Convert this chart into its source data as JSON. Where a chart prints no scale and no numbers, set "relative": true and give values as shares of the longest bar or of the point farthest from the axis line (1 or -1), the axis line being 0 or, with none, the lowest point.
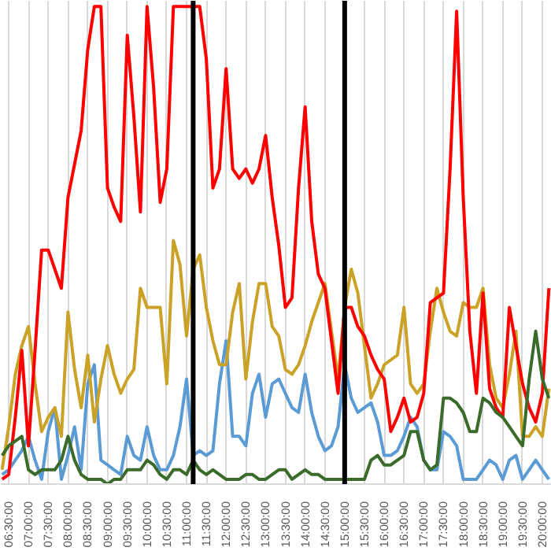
{
  "chart_data": {
    "type": "line",
    "relative": true,
    "x": [
      6.333,
      6.5,
      6.667,
      6.833,
      7,
      7.167,
      7.333,
      7.5,
      7.667,
      7.833,
      8,
      8.167,
      8.333,
      8.5,
      8.667,
      8.833,
      9,
      9.167,
      9.333,
      9.5,
      9.667,
      9.833,
      10,
      10.167,
      10.333,
      10.5,
      10.667,
      10.833,
      11,
      11.167,
      11.333,
      11.5,
      11.667,
      11.833,
      12,
      12.167,
      12.333,
      12.5,
      12.667,
      12.833,
      13,
      13.167,
      13.333,
      13.5,
      13.667,
      13.833,
      14,
      14.167,
      14.333,
      14.5,
      14.667,
      14.833,
      15,
      15.167,
      15.333,
      15.5,
      15.667,
      15.833,
      16,
      16.167,
      16.333,
      16.5,
      16.667,
      16.833,
      17,
      17.167,
      17.333,
      17.5,
      17.667,
      17.833,
      18,
      18.167,
      18.333,
      18.5,
      18.667,
      18.833,
      19,
      19.167,
      19.333,
      19.5,
      19.667,
      19.833,
      20,
      20.167
    ],
    "xlim": [
      6.3,
      20.24
    ],
    "xticks": [
      {
        "value": 6.5,
        "label": "06:30:00"
      },
      {
        "value": 7,
        "label": "07:00:00"
      },
      {
        "value": 7.5,
        "label": "07:30:00"
      },
      {
        "value": 8,
        "label": "08:00:00"
      },
      {
        "value": 8.5,
        "label": "08:30:00"
      },
      {
        "value": 9,
        "label": "09:00:00"
      },
      {
        "value": 9.5,
        "label": "09:30:00"
      },
      {
        "value": 10,
        "label": "10:00:00"
      },
      {
        "value": 10.5,
        "label": "10:30:00"
      },
      {
        "value": 11,
        "label": "11:00:00"
      },
      {
        "value": 11.5,
        "label": "11:30:00"
      },
      {
        "value": 12,
        "label": "12:00:00"
      },
      {
        "value": 12.5,
        "label": "12:30:00"
      },
      {
        "value": 13,
        "label": "13:00:00"
      },
      {
        "value": 13.5,
        "label": "13:30:00"
      },
      {
        "value": 14,
        "label": "14:00:00"
      },
      {
        "value": 14.5,
        "label": "14:30:00"
      },
      {
        "value": 15,
        "label": "15:00:00"
      },
      {
        "value": 15.5,
        "label": "15:30:00"
      },
      {
        "value": 16,
        "label": "16:00:00"
      },
      {
        "value": 16.5,
        "label": "16:30:00"
      },
      {
        "value": 17,
        "label": "17:00:00"
      },
      {
        "value": 17.5,
        "label": "17:30:00"
      },
      {
        "value": 18,
        "label": "18:00:00"
      },
      {
        "value": 18.5,
        "label": "18:30:00"
      },
      {
        "value": 19,
        "label": "19:00:00"
      },
      {
        "value": 19.5,
        "label": "19:30:00"
      },
      {
        "value": 20,
        "label": "20:00:00"
      }
    ],
    "grid": "x",
    "line_style": "solid",
    "ref_lines": [
      {
        "axis": "x",
        "value": 11.167,
        "color": "#000000"
      },
      {
        "axis": "x",
        "value": 15,
        "color": "#000000"
      }
    ],
    "series": [
      {
        "color": "#5b9bd5",
        "values": [
          0.02,
          0.03,
          0.05,
          0.07,
          0.1,
          0.05,
          0.01,
          0.11,
          0.16,
          0.01,
          0.06,
          0.12,
          0.03,
          0.21,
          0.25,
          0.05,
          0.04,
          0.03,
          0.02,
          0.1,
          0.06,
          0.05,
          0.12,
          0.06,
          0.03,
          0.03,
          0.06,
          0.12,
          0.22,
          0.06,
          0.07,
          0.06,
          0.07,
          0.21,
          0.3,
          0.1,
          0.1,
          0.08,
          0.19,
          0.23,
          0.14,
          0.21,
          0.22,
          0.19,
          0.16,
          0.15,
          0.23,
          0.15,
          0.1,
          0.07,
          0.08,
          0.12,
          0.25,
          0.18,
          0.15,
          0.16,
          0.17,
          0.13,
          0.06,
          0.06,
          0.07,
          0.1,
          0.14,
          0.12,
          0.05,
          0.03,
          0.03,
          0.11,
          0.1,
          0.08,
          0.01,
          0.01,
          0.01,
          0.03,
          0.05,
          0.04,
          0.01,
          0.05,
          0.06,
          0.01,
          0.03,
          0.05,
          0.03,
          0.01
        ]
      },
      {
        "color": "#c9a227",
        "values": [
          0.03,
          0.12,
          0.23,
          0.29,
          0.33,
          0.21,
          0.11,
          0.14,
          0.16,
          0.1,
          0.36,
          0.24,
          0.16,
          0.27,
          0.13,
          0.22,
          0.29,
          0.23,
          0.19,
          0.22,
          0.24,
          0.41,
          0.37,
          0.37,
          0.37,
          0.21,
          0.51,
          0.46,
          0.31,
          0.45,
          0.48,
          0.37,
          0.3,
          0.25,
          0.25,
          0.36,
          0.42,
          0.22,
          0.34,
          0.42,
          0.42,
          0.33,
          0.31,
          0.24,
          0.23,
          0.25,
          0.29,
          0.34,
          0.38,
          0.42,
          0.32,
          0.22,
          0.37,
          0.45,
          0.4,
          0.29,
          0.18,
          0.21,
          0.25,
          0.26,
          0.27,
          0.37,
          0.21,
          0.19,
          0.21,
          0.32,
          0.41,
          0.36,
          0.32,
          0.31,
          0.38,
          0.37,
          0.37,
          0.41,
          0.25,
          0.18,
          0.16,
          0.23,
          0.32,
          0.1,
          0.1,
          0.12,
          0.1,
          0.2
        ]
      },
      {
        "color": "#ff0000",
        "values": [
          0.01,
          0.02,
          0.14,
          0.28,
          0.08,
          0.28,
          0.49,
          0.49,
          0.45,
          0.41,
          0.6,
          0.67,
          0.74,
          0.91,
          1,
          1,
          0.62,
          0.58,
          0.55,
          0.94,
          0.77,
          0.57,
          1,
          0.83,
          0.59,
          0.66,
          1,
          1,
          1,
          1,
          1,
          0.89,
          0.62,
          0.66,
          0.87,
          0.66,
          0.64,
          0.66,
          0.63,
          0.66,
          0.73,
          0.6,
          0.5,
          0.37,
          0.39,
          0.62,
          0.79,
          0.55,
          0.44,
          0.41,
          0.3,
          0.19,
          0.37,
          0.37,
          0.33,
          0.31,
          0.27,
          0.24,
          0.22,
          0.11,
          0.14,
          0.18,
          0.13,
          0.14,
          0.19,
          0.38,
          0.39,
          0.4,
          0.66,
          0.99,
          0.6,
          0.32,
          0.19,
          0.4,
          0.2,
          0.16,
          0.14,
          0.37,
          0.29,
          0.21,
          0.16,
          0.13,
          0.19,
          0.41
        ]
      },
      {
        "color": "#3a6b2a",
        "values": [
          0.06,
          0.08,
          0.09,
          0.1,
          0.03,
          0.02,
          0.03,
          0.03,
          0.03,
          0.05,
          0.1,
          0.05,
          0.02,
          0.01,
          0.01,
          0.01,
          0,
          0.01,
          0.01,
          0.03,
          0.03,
          0.03,
          0.05,
          0.04,
          0.02,
          0.01,
          0.03,
          0.03,
          0.02,
          0.05,
          0.03,
          0.02,
          0.03,
          0.02,
          0.01,
          0.01,
          0.01,
          0.02,
          0.02,
          0.01,
          0.01,
          0.02,
          0.03,
          0.03,
          0.01,
          0.02,
          0.03,
          0.02,
          0.02,
          0.01,
          0.01,
          0.01,
          0.01,
          0.01,
          0.01,
          0.01,
          0.05,
          0.06,
          0.04,
          0.04,
          0.05,
          0.06,
          0.11,
          0.11,
          0.05,
          0.03,
          0.04,
          0.18,
          0.18,
          0.17,
          0.15,
          0.11,
          0.11,
          0.18,
          0.17,
          0.15,
          0.14,
          0.12,
          0.1,
          0.08,
          0.22,
          0.32,
          0.22,
          0.18
        ]
      }
    ]
  }
}
